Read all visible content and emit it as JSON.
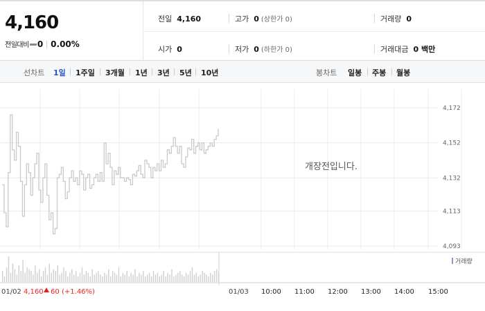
{
  "summary": {
    "current_price": "4,160",
    "change_label": "전일대비",
    "change_value": "0",
    "change_pct": "0.00%",
    "stats": {
      "prev_close": {
        "label": "전일",
        "value": "4,160"
      },
      "high": {
        "label": "고가",
        "value": "0",
        "sub": "(상한가 0)"
      },
      "volume": {
        "label": "거래량",
        "value": "0"
      },
      "open": {
        "label": "시가",
        "value": "0"
      },
      "low": {
        "label": "저가",
        "value": "0",
        "sub": "(하한가 0)"
      },
      "trade_amount": {
        "label": "거래대금",
        "value": "0 백만"
      }
    }
  },
  "tabs": {
    "line_label": "선차트",
    "line_tabs": [
      "1일",
      "1주일",
      "3개월",
      "1년",
      "3년",
      "5년",
      "10년"
    ],
    "line_active": "1일",
    "candle_label": "봉차트",
    "candle_tabs": [
      "일봉",
      "주봉",
      "월봉"
    ]
  },
  "chart_data": {
    "type": "line",
    "title": "",
    "y_ticks": [
      "4,172",
      "4,152",
      "4,132",
      "4,113",
      "4,093"
    ],
    "y_tick_values": [
      4172,
      4152,
      4132,
      4113,
      4093
    ],
    "ylim": [
      4093,
      4172
    ],
    "prev_day": {
      "date": "01/02",
      "close": "4,160",
      "change": "60",
      "change_pct": "(+1.46%)",
      "direction": "up",
      "price_series": [
        4128,
        4112,
        4104,
        4135,
        4168,
        4148,
        4142,
        4158,
        4150,
        4130,
        4110,
        4128,
        4140,
        4135,
        4122,
        4132,
        4140,
        4146,
        4125,
        4118,
        4132,
        4140,
        4122,
        4108,
        4112,
        4100,
        4103,
        4132,
        4134,
        4138,
        4130,
        4120,
        4124,
        4132,
        4136,
        4130,
        4132,
        4128,
        4136,
        4134,
        4125,
        4132,
        4134,
        4126,
        4128,
        4132,
        4134,
        4130,
        4135,
        4130,
        4152,
        4140,
        4146,
        4138,
        4128,
        4136,
        4134,
        4138,
        4132,
        4132,
        4130,
        4132,
        4131,
        4128,
        4134,
        4133,
        4136,
        4139,
        4134,
        4132,
        4142,
        4140,
        4138,
        4132,
        4138,
        4136,
        4140,
        4136,
        4142,
        4138,
        4140,
        4148,
        4146,
        4150,
        4155,
        4150,
        4146,
        4150,
        4140,
        4138,
        4144,
        4149,
        4148,
        4154,
        4146,
        4150,
        4152,
        4148,
        4152,
        4146,
        4148,
        4150,
        4152,
        4150,
        4154,
        4156,
        4160
      ],
      "volume_series": [
        6,
        3,
        8,
        14,
        5,
        10,
        7,
        4,
        9,
        6,
        12,
        5,
        8,
        7,
        6,
        4,
        9,
        5,
        7,
        3,
        6,
        8,
        4,
        10,
        5,
        7,
        6,
        9,
        4,
        5,
        8,
        6,
        3,
        5,
        7,
        4,
        6,
        3,
        5,
        8,
        4,
        6,
        5,
        3,
        7,
        4,
        5,
        6,
        4,
        3,
        5,
        4,
        7,
        3,
        6,
        5,
        4,
        8,
        3,
        5,
        4,
        6,
        3,
        5,
        4,
        7,
        3,
        5,
        4,
        6,
        3,
        4,
        5,
        3,
        6,
        4,
        5,
        3,
        4,
        6,
        3,
        5,
        4,
        7,
        3,
        4,
        5,
        6,
        4,
        3,
        5,
        4,
        6,
        8,
        4,
        5,
        3,
        4,
        6,
        5,
        4,
        3,
        5,
        4,
        6,
        7,
        5
      ]
    },
    "time_labels": [
      "01/03",
      "10:00",
      "11:00",
      "12:00",
      "13:00",
      "14:00",
      "15:00"
    ],
    "notice": "개장전입니다.",
    "volume_legend": "거래량",
    "grid": true,
    "colors": {
      "line": "#c9c9c9",
      "up": "#e22222",
      "grid": "#ececec",
      "active_tab": "#2a52c6"
    }
  }
}
